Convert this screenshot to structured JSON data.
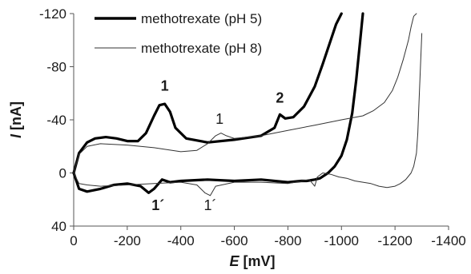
{
  "chart_data": {
    "type": "line",
    "title": "",
    "xlabel": "E",
    "xunit": "[mV]",
    "ylabel": "I",
    "yunit": "[nA]",
    "xlim": [
      0,
      -1400
    ],
    "ylim": [
      40,
      -120
    ],
    "x_ticks": [
      0,
      -200,
      -400,
      -600,
      -800,
      -1000,
      -1200,
      -1400
    ],
    "y_ticks": [
      -120,
      -80,
      -40,
      0,
      40
    ],
    "x_tick_labels": [
      "0",
      "-200",
      "-400",
      "-600",
      "-800",
      "-1000",
      "-1200",
      "-1400"
    ],
    "y_tick_labels": [
      "-120",
      "-80",
      "-40",
      "0",
      "40"
    ],
    "grid": false,
    "legend_position": "top-left",
    "series": [
      {
        "name": "methotrexate (pH 5)",
        "style": "thick",
        "color": "#000000",
        "forward": {
          "x": [
            0,
            -20,
            -50,
            -80,
            -120,
            -160,
            -200,
            -240,
            -270,
            -300,
            -320,
            -340,
            -360,
            -380,
            -420,
            -500,
            -600,
            -700,
            -750,
            -770,
            -790,
            -820,
            -860,
            -900,
            -930,
            -960,
            -980,
            -1000
          ],
          "y": [
            0,
            -15,
            -23,
            -26,
            -27,
            -26,
            -24,
            -24,
            -30,
            -43,
            -51,
            -52,
            -46,
            -34,
            -26,
            -23,
            -25,
            -28,
            -34,
            -44,
            -41,
            -42,
            -50,
            -65,
            -82,
            -100,
            -112,
            -120
          ]
        },
        "reverse": {
          "x": [
            -1080,
            -1070,
            -1055,
            -1040,
            -1020,
            -1000,
            -975,
            -950,
            -920,
            -900,
            -870,
            -850,
            -800,
            -700,
            -600,
            -500,
            -400,
            -360,
            -330,
            -300,
            -280,
            -250,
            -200,
            -150,
            -100,
            -50,
            -20,
            0
          ],
          "y": [
            -120,
            -100,
            -70,
            -45,
            -25,
            -13,
            -5,
            0,
            4,
            5,
            6,
            6,
            7,
            5,
            6,
            5,
            6,
            7,
            5,
            12,
            15,
            10,
            8,
            9,
            12,
            14,
            12,
            0
          ]
        }
      },
      {
        "name": "methotrexate (pH 8)",
        "style": "thin",
        "color": "#333333",
        "forward": {
          "x": [
            0,
            -20,
            -50,
            -100,
            -200,
            -300,
            -400,
            -460,
            -500,
            -530,
            -550,
            -570,
            -600,
            -700,
            -800,
            -900,
            -1000,
            -1080,
            -1120,
            -1160,
            -1190,
            -1210,
            -1230,
            -1250,
            -1260,
            -1270,
            -1280
          ],
          "y": [
            0,
            -14,
            -20,
            -22,
            -21,
            -19,
            -16,
            -17,
            -22,
            -28,
            -30,
            -28,
            -26,
            -28,
            -32,
            -36,
            -40,
            -43,
            -47,
            -53,
            -62,
            -72,
            -85,
            -100,
            -110,
            -118,
            -125
          ],
          "y_mid": []
        },
        "reverse": {
          "x": [
            -1300,
            -1295,
            -1290,
            -1285,
            -1280,
            -1270,
            -1260,
            -1240,
            -1220,
            -1200,
            -1170,
            -1140,
            -1110,
            -1080,
            -1050,
            -1020,
            -990,
            -960,
            -930,
            -910,
            -900,
            -880,
            -800,
            -700,
            -600,
            -530,
            -510,
            -490,
            -460,
            -400,
            -300,
            -200,
            -100,
            -50,
            -20,
            0
          ],
          "y": [
            -105,
            -80,
            -55,
            -30,
            -15,
            -5,
            0,
            5,
            8,
            10,
            11,
            10,
            8,
            7,
            6,
            4,
            3,
            1,
            0,
            3,
            10,
            5,
            8,
            7,
            7,
            10,
            17,
            15,
            9,
            7,
            8,
            9,
            10,
            9,
            8,
            0
          ]
        }
      }
    ],
    "annotations": [
      {
        "text": "1",
        "bold": true,
        "x": -340,
        "y": -62
      },
      {
        "text": "1",
        "bold": false,
        "x": -545,
        "y": -37
      },
      {
        "text": "2",
        "bold": true,
        "x": -770,
        "y": -53
      },
      {
        "text": "1´",
        "bold": true,
        "x": -315,
        "y": 28
      },
      {
        "text": "1´",
        "bold": false,
        "x": -510,
        "y": 28
      }
    ]
  }
}
